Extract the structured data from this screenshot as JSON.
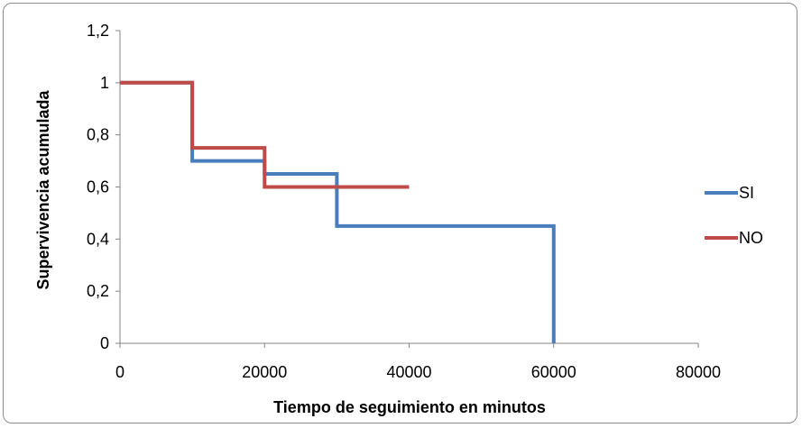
{
  "chart_data": {
    "type": "line",
    "step": true,
    "xlabel": "Tiempo de seguimiento en minutos",
    "ylabel": "Supervivencia acumulada",
    "xlim": [
      0,
      80000
    ],
    "ylim": [
      0,
      1.2
    ],
    "x_ticks": [
      "0",
      "20000",
      "40000",
      "60000",
      "80000"
    ],
    "y_ticks": [
      "0",
      "0,2",
      "0,4",
      "0,6",
      "0,8",
      "1",
      "1,2"
    ],
    "grid": false,
    "legend_position": "right",
    "series": [
      {
        "name": "SI",
        "color": "#4a7ebb",
        "points": [
          [
            0,
            1
          ],
          [
            10000,
            1
          ],
          [
            10000,
            0.7
          ],
          [
            20000,
            0.7
          ],
          [
            20000,
            0.65
          ],
          [
            30000,
            0.65
          ],
          [
            30000,
            0.45
          ],
          [
            60000,
            0.45
          ],
          [
            60000,
            0
          ]
        ]
      },
      {
        "name": "NO",
        "color": "#be4b48",
        "points": [
          [
            0,
            1
          ],
          [
            10000,
            1
          ],
          [
            10000,
            0.75
          ],
          [
            20000,
            0.75
          ],
          [
            20000,
            0.6
          ],
          [
            40000,
            0.6
          ]
        ]
      }
    ]
  }
}
